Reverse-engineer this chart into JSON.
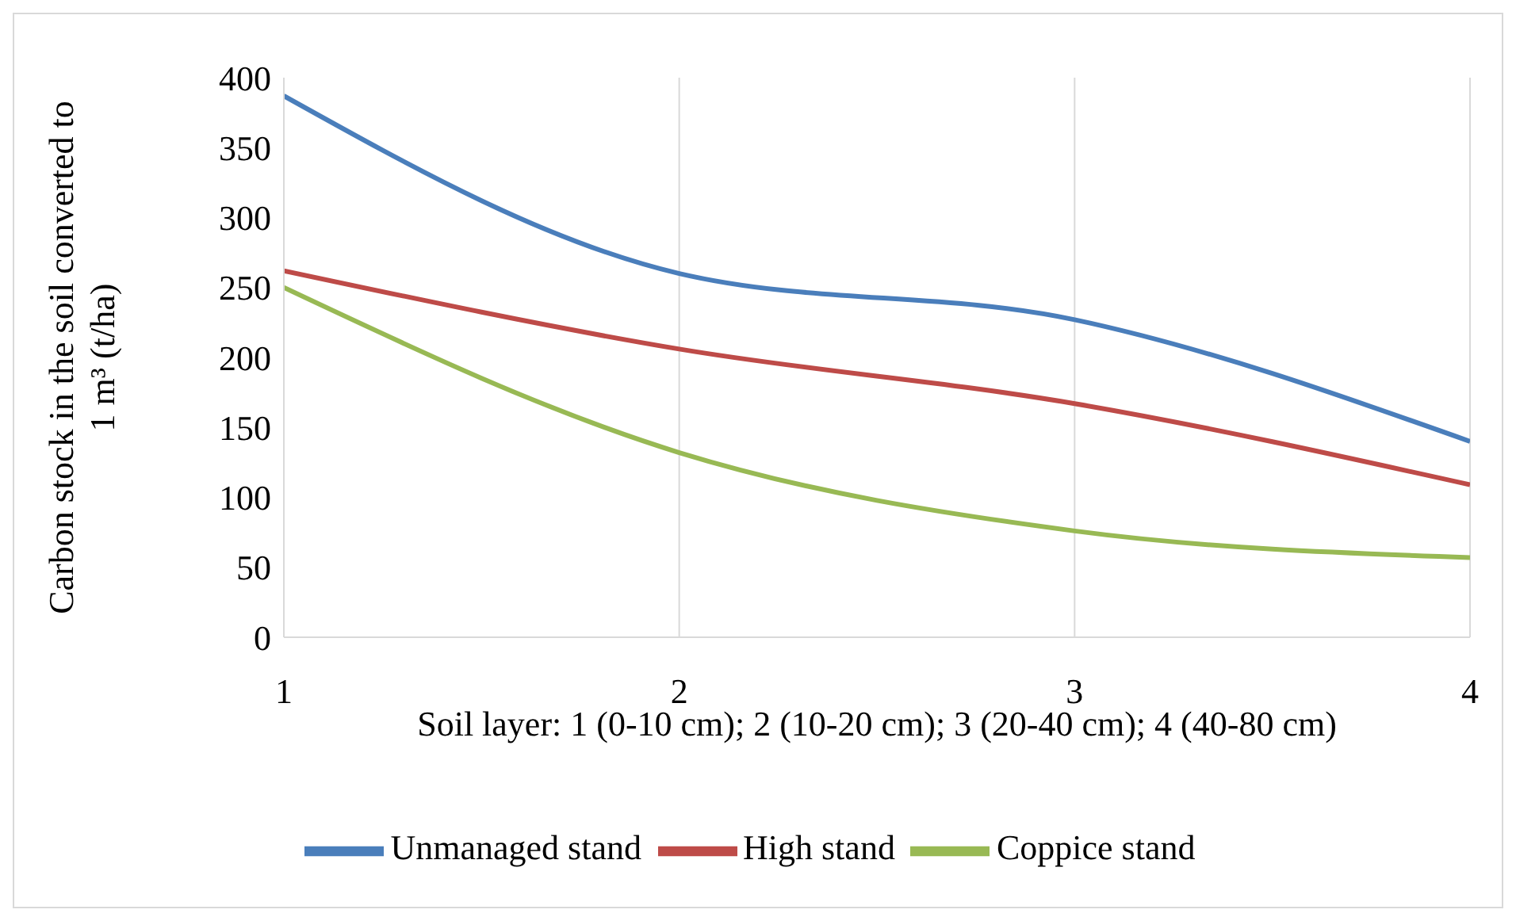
{
  "chart_data": {
    "type": "line",
    "xlabel": "Soil layer: 1 (0-10 cm); 2 (10-20 cm); 3 (20-40 cm); 4 (40-80 cm)",
    "ylabel": "Carbon stock in the soil converted to 1 m³ (t/ha)",
    "x": [
      1,
      2,
      3,
      4
    ],
    "series": [
      {
        "name": "Unmanaged stand",
        "color": "#4a7ebb",
        "values": [
          387,
          260,
          227,
          140
        ]
      },
      {
        "name": "High stand",
        "color": "#be4b48",
        "values": [
          262,
          206,
          167,
          109
        ]
      },
      {
        "name": "Coppice stand",
        "color": "#98b954",
        "values": [
          250,
          132,
          76,
          57
        ]
      }
    ],
    "xlim": [
      1,
      4
    ],
    "xticks": [
      1,
      2,
      3,
      4
    ],
    "ylim": [
      0,
      400
    ],
    "yticks": [
      0,
      50,
      100,
      150,
      200,
      250,
      300,
      350,
      400
    ],
    "grid": "x",
    "legend": "bottom",
    "marker": "none",
    "line_style": "solid"
  }
}
